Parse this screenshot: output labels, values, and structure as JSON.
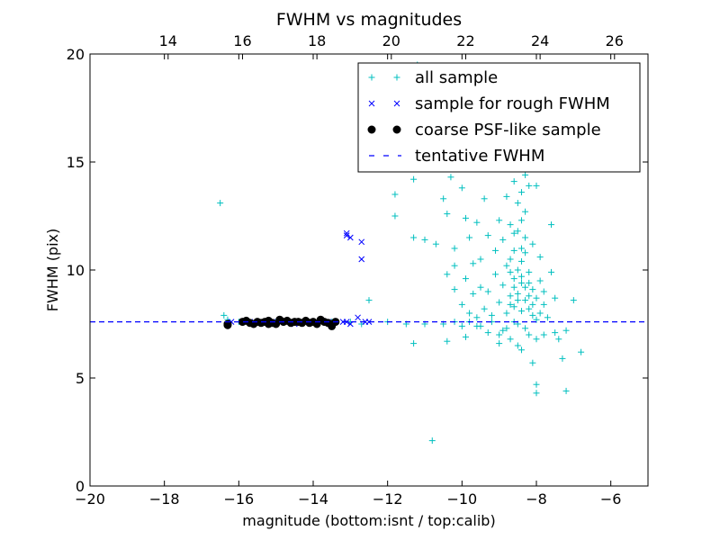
{
  "chart_data": {
    "type": "scatter",
    "title": "FWHM vs magnitudes",
    "xlabel": "magnitude (bottom:isnt / top:calib)",
    "ylabel": "FWHM (pix)",
    "xlim": [
      -20,
      -5
    ],
    "ylim": [
      0,
      20
    ],
    "x_ticks": [
      -20,
      -18,
      -16,
      -14,
      -12,
      -10,
      -8,
      -6
    ],
    "x_tick_labels": [
      "−20",
      "−18",
      "−16",
      "−14",
      "−12",
      "−10",
      "−8",
      "−6"
    ],
    "y_ticks": [
      0,
      5,
      10,
      15,
      20
    ],
    "y_tick_labels": [
      "0",
      "5",
      "10",
      "15",
      "20"
    ],
    "top_axis": {
      "ticks": [
        14,
        16,
        18,
        20,
        22,
        24,
        26
      ],
      "tick_labels": [
        "14",
        "16",
        "18",
        "20",
        "22",
        "24",
        "26"
      ],
      "offset": 31.9
    },
    "grid": false,
    "legend_position": "top-right",
    "series": [
      {
        "name": "all sample",
        "marker": "plus",
        "color": "#00bfbf",
        "points": [
          [
            -16.5,
            13.1
          ],
          [
            -16.4,
            7.9
          ],
          [
            -16.3,
            7.7
          ],
          [
            -16.0,
            7.6
          ],
          [
            -15.5,
            7.6
          ],
          [
            -15.0,
            7.6
          ],
          [
            -14.5,
            7.6
          ],
          [
            -14.0,
            7.6
          ],
          [
            -13.5,
            7.6
          ],
          [
            -13.0,
            7.6
          ],
          [
            -12.7,
            7.5
          ],
          [
            -12.5,
            8.6
          ],
          [
            -12.0,
            7.6
          ],
          [
            -11.5,
            7.5
          ],
          [
            -11.3,
            6.6
          ],
          [
            -11.0,
            7.5
          ],
          [
            -10.8,
            2.1
          ],
          [
            -10.5,
            7.5
          ],
          [
            -10.4,
            6.7
          ],
          [
            -10.2,
            7.6
          ],
          [
            -10.0,
            7.4
          ],
          [
            -9.8,
            7.6
          ],
          [
            -9.5,
            7.4
          ],
          [
            -9.2,
            7.6
          ],
          [
            -9.0,
            7.0
          ],
          [
            -8.8,
            7.3
          ],
          [
            -8.5,
            7.5
          ],
          [
            -8.2,
            7.0
          ],
          [
            -8.0,
            6.8
          ],
          [
            -7.8,
            7.0
          ],
          [
            -7.2,
            7.2
          ],
          [
            -7.0,
            8.6
          ],
          [
            -6.8,
            6.2
          ],
          [
            -7.3,
            5.9
          ],
          [
            -7.2,
            4.4
          ],
          [
            -8.0,
            4.7
          ],
          [
            -8.0,
            4.3
          ],
          [
            -8.1,
            5.7
          ],
          [
            -8.4,
            6.3
          ],
          [
            -8.5,
            6.5
          ],
          [
            -8.7,
            6.8
          ],
          [
            -9.0,
            6.6
          ],
          [
            -11.8,
            13.5
          ],
          [
            -11.8,
            12.5
          ],
          [
            -11.7,
            14.9
          ],
          [
            -11.5,
            18.0
          ],
          [
            -11.3,
            14.2
          ],
          [
            -11.2,
            19.5
          ],
          [
            -11.3,
            11.5
          ],
          [
            -11.0,
            11.4
          ],
          [
            -10.7,
            11.2
          ],
          [
            -10.5,
            13.3
          ],
          [
            -10.4,
            12.6
          ],
          [
            -10.3,
            14.3
          ],
          [
            -10.2,
            11.0
          ],
          [
            -10.2,
            10.2
          ],
          [
            -10.0,
            13.8
          ],
          [
            -9.9,
            12.4
          ],
          [
            -9.8,
            11.5
          ],
          [
            -9.7,
            10.3
          ],
          [
            -9.6,
            12.2
          ],
          [
            -9.5,
            9.2
          ],
          [
            -9.4,
            13.3
          ],
          [
            -9.3,
            11.6
          ],
          [
            -9.2,
            14.7
          ],
          [
            -9.1,
            10.9
          ],
          [
            -9.0,
            12.3
          ],
          [
            -8.9,
            11.4
          ],
          [
            -8.8,
            13.4
          ],
          [
            -8.7,
            10.5
          ],
          [
            -8.6,
            11.7
          ],
          [
            -8.5,
            13.1
          ],
          [
            -8.4,
            11.0
          ],
          [
            -8.3,
            12.7
          ],
          [
            -8.2,
            9.4
          ],
          [
            -8.1,
            11.2
          ],
          [
            -8.0,
            13.9
          ],
          [
            -7.9,
            10.6
          ],
          [
            -7.8,
            9.0
          ],
          [
            -7.6,
            12.1
          ],
          [
            -7.6,
            9.9
          ],
          [
            -7.5,
            8.7
          ],
          [
            -10.4,
            9.8
          ],
          [
            -10.2,
            9.1
          ],
          [
            -10.0,
            8.4
          ],
          [
            -9.9,
            9.6
          ],
          [
            -9.8,
            8.0
          ],
          [
            -9.7,
            8.9
          ],
          [
            -9.6,
            7.8
          ],
          [
            -9.5,
            10.5
          ],
          [
            -9.4,
            8.2
          ],
          [
            -9.3,
            9.0
          ],
          [
            -9.2,
            7.9
          ],
          [
            -9.1,
            9.8
          ],
          [
            -9.0,
            8.5
          ],
          [
            -8.9,
            9.3
          ],
          [
            -8.8,
            8.0
          ],
          [
            -8.8,
            10.2
          ],
          [
            -8.7,
            8.8
          ],
          [
            -8.6,
            9.6
          ],
          [
            -8.6,
            8.3
          ],
          [
            -8.5,
            10.0
          ],
          [
            -8.5,
            8.9
          ],
          [
            -8.4,
            9.4
          ],
          [
            -8.4,
            8.1
          ],
          [
            -8.3,
            10.8
          ],
          [
            -8.3,
            8.6
          ],
          [
            -8.2,
            9.9
          ],
          [
            -8.2,
            8.2
          ],
          [
            -8.1,
            9.1
          ],
          [
            -8.1,
            7.9
          ],
          [
            -8.0,
            8.7
          ],
          [
            -8.0,
            7.7
          ],
          [
            -7.9,
            9.5
          ],
          [
            -7.9,
            8.0
          ],
          [
            -7.8,
            8.4
          ],
          [
            -7.7,
            7.8
          ],
          [
            -7.5,
            7.1
          ],
          [
            -7.4,
            6.8
          ],
          [
            -8.3,
            7.3
          ],
          [
            -8.6,
            7.6
          ],
          [
            -8.9,
            7.2
          ],
          [
            -9.3,
            7.1
          ],
          [
            -9.6,
            7.4
          ],
          [
            -9.9,
            6.9
          ],
          [
            -8.7,
            12.1
          ],
          [
            -8.6,
            14.1
          ],
          [
            -8.5,
            15.0
          ],
          [
            -8.4,
            13.6
          ],
          [
            -8.8,
            14.9
          ],
          [
            -8.7,
            15.9
          ],
          [
            -8.6,
            16.4
          ],
          [
            -8.5,
            17.7
          ],
          [
            -8.4,
            12.3
          ],
          [
            -8.3,
            14.4
          ],
          [
            -8.2,
            13.9
          ],
          [
            -8.5,
            11.8
          ],
          [
            -8.6,
            10.9
          ],
          [
            -8.4,
            10.4
          ],
          [
            -8.3,
            11.5
          ],
          [
            -8.7,
            9.9
          ],
          [
            -8.6,
            9.2
          ],
          [
            -8.4,
            9.7
          ],
          [
            -8.3,
            9.2
          ],
          [
            -8.2,
            8.8
          ],
          [
            -8.1,
            8.4
          ],
          [
            -8.5,
            8.6
          ],
          [
            -8.7,
            8.4
          ]
        ]
      },
      {
        "name": "sample for rough FWHM",
        "marker": "x",
        "color": "#0000ff",
        "points": [
          [
            -13.1,
            11.7
          ],
          [
            -13.1,
            11.6
          ],
          [
            -13.0,
            11.5
          ],
          [
            -12.7,
            11.3
          ],
          [
            -12.7,
            10.5
          ],
          [
            -16.3,
            7.5
          ],
          [
            -16.2,
            7.6
          ],
          [
            -15.9,
            7.6
          ],
          [
            -15.7,
            7.6
          ],
          [
            -15.4,
            7.6
          ],
          [
            -15.1,
            7.6
          ],
          [
            -14.8,
            7.6
          ],
          [
            -14.5,
            7.5
          ],
          [
            -14.2,
            7.6
          ],
          [
            -13.9,
            7.6
          ],
          [
            -13.6,
            7.6
          ],
          [
            -13.4,
            7.6
          ],
          [
            -13.2,
            7.6
          ],
          [
            -13.0,
            7.5
          ],
          [
            -12.8,
            7.8
          ],
          [
            -12.6,
            7.6
          ],
          [
            -12.5,
            7.6
          ],
          [
            -13.1,
            7.6
          ]
        ]
      },
      {
        "name": "coarse PSF-like sample",
        "marker": "circle",
        "color": "#000000",
        "points": [
          [
            -16.3,
            7.5
          ],
          [
            -16.3,
            7.45
          ],
          [
            -15.9,
            7.6
          ],
          [
            -15.8,
            7.65
          ],
          [
            -15.7,
            7.55
          ],
          [
            -15.6,
            7.5
          ],
          [
            -15.5,
            7.6
          ],
          [
            -15.4,
            7.55
          ],
          [
            -15.3,
            7.6
          ],
          [
            -15.2,
            7.65
          ],
          [
            -15.1,
            7.55
          ],
          [
            -15.0,
            7.5
          ],
          [
            -14.9,
            7.7
          ],
          [
            -14.8,
            7.6
          ],
          [
            -14.7,
            7.65
          ],
          [
            -14.6,
            7.55
          ],
          [
            -14.5,
            7.6
          ],
          [
            -14.4,
            7.6
          ],
          [
            -14.2,
            7.65
          ],
          [
            -14.1,
            7.55
          ],
          [
            -14.0,
            7.6
          ],
          [
            -13.9,
            7.5
          ],
          [
            -13.8,
            7.7
          ],
          [
            -13.7,
            7.6
          ],
          [
            -13.6,
            7.55
          ],
          [
            -13.5,
            7.4
          ],
          [
            -13.5,
            7.5
          ],
          [
            -13.4,
            7.6
          ],
          [
            -15.2,
            7.5
          ],
          [
            -14.3,
            7.55
          ]
        ]
      },
      {
        "name": "tentative FWHM",
        "marker": "dashed-line",
        "color": "#0000ff",
        "value": 7.6
      }
    ]
  }
}
